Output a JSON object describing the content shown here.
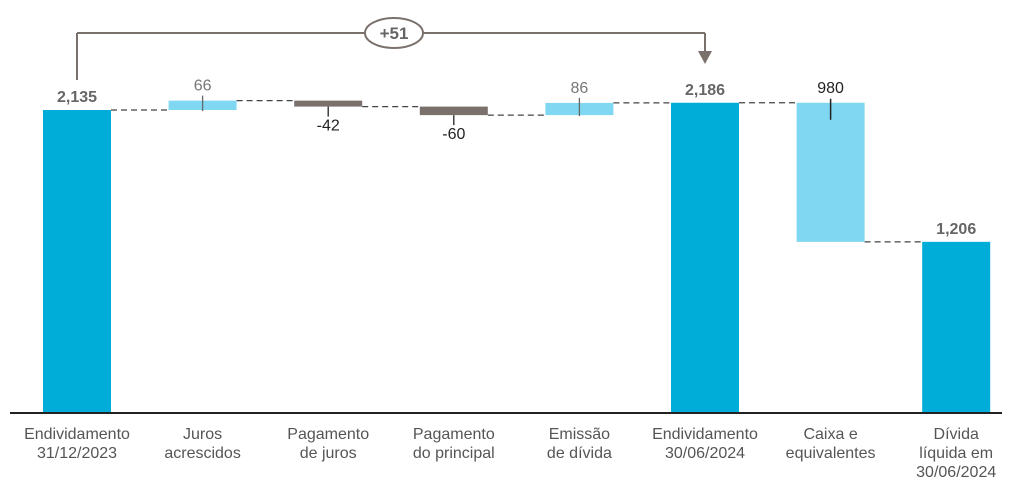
{
  "chart_data": {
    "type": "waterfall",
    "categories": [
      [
        "Endividamento",
        "31/12/2023"
      ],
      [
        "Juros",
        "acrescidos"
      ],
      [
        "Pagamento",
        "de juros"
      ],
      [
        "Pagamento",
        "do principal"
      ],
      [
        "Emissão",
        "de dívida"
      ],
      [
        "Endividamento",
        "30/06/2024"
      ],
      [
        "Caixa e",
        "equivalentes"
      ],
      [
        "Dívida",
        "líquida  em",
        "30/06/2024"
      ]
    ],
    "values": [
      2135,
      66,
      -42,
      -60,
      86,
      2186,
      -980,
      1206
    ],
    "value_labels": [
      "2,135",
      "66",
      "-42",
      "-60",
      "86",
      "2,186",
      "980",
      "1,206"
    ],
    "kinds": [
      "total",
      "increase",
      "decrease",
      "decrease",
      "increase",
      "total",
      "decrease",
      "total"
    ],
    "delta_label": "+51",
    "colors": {
      "total": "#00ADD8",
      "increase": "#7FD7F1",
      "decrease": "#7A716C",
      "cash": "#7FD7F1",
      "connector": "#444444",
      "axis": "#222222",
      "bracket": "#7A716C"
    }
  }
}
